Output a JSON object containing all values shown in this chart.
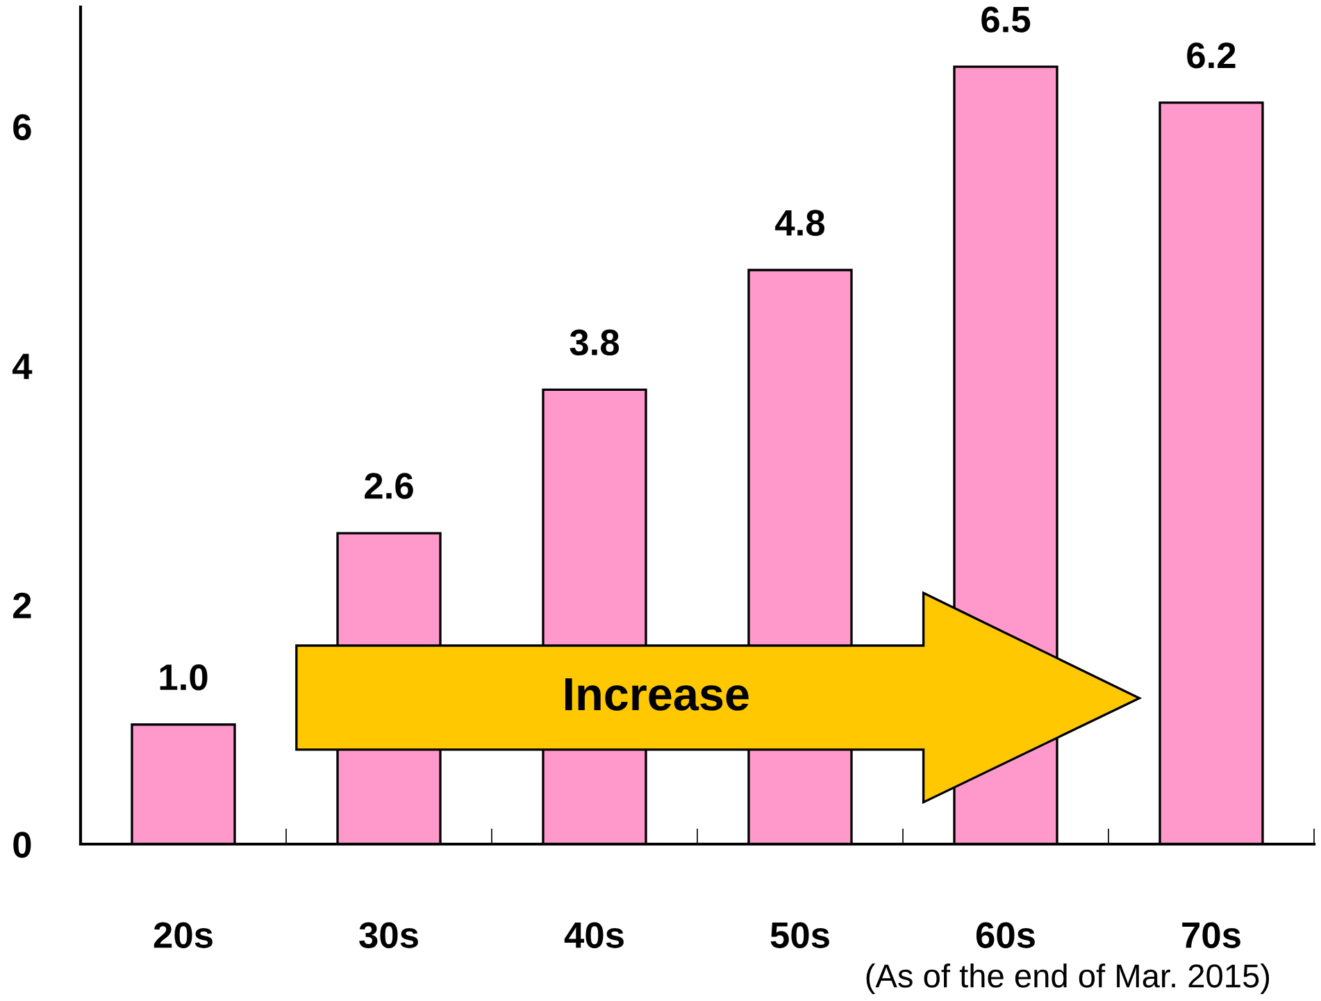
{
  "chart_data": {
    "type": "bar",
    "categories": [
      "20s",
      "30s",
      "40s",
      "50s",
      "60s",
      "70s"
    ],
    "values": [
      1.0,
      2.6,
      3.8,
      4.8,
      6.5,
      6.2
    ],
    "color": "#ff99cc",
    "value_labels": [
      "1.0",
      "2.6",
      "3.8",
      "4.8",
      "6.5",
      "6.2"
    ],
    "ylim": [
      0,
      7
    ],
    "yticks": [
      0,
      2,
      4,
      6
    ],
    "grid": false,
    "legend": false,
    "annotations": [
      "Increase",
      "(As of the end of Mar. 2015)"
    ]
  }
}
